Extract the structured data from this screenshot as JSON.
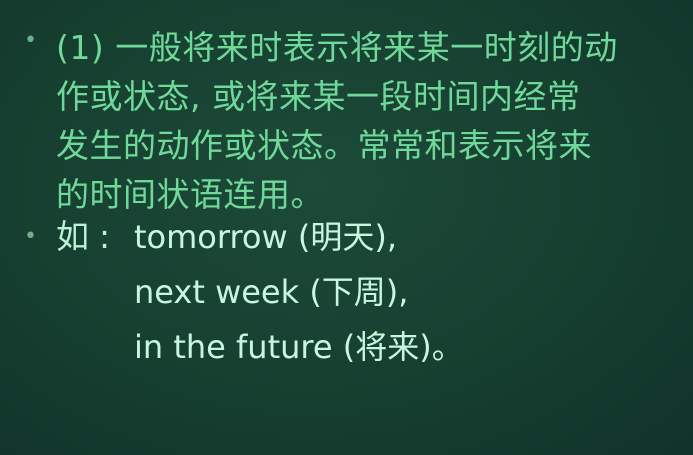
{
  "slide": {
    "paragraph": {
      "lines": [
        "(1) 一般将来时表示将来某一时刻的动",
        "作或状态,  或将来某一段时间内经常",
        "发生的动作或状态。常常和表示将来",
        "的时间状语连用。"
      ]
    },
    "example": {
      "lead": "如",
      "colon": ":",
      "items": [
        "tomorrow (明天),",
        "next week (下周),",
        "in the future (将来)。"
      ]
    }
  }
}
